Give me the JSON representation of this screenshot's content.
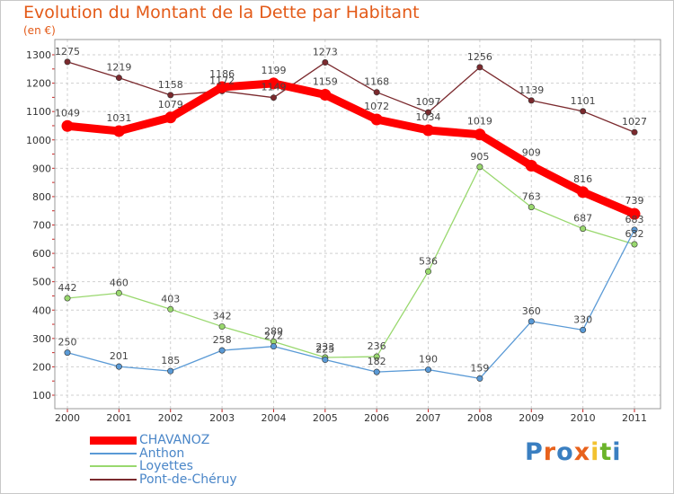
{
  "title": "Evolution du Montant de la Dette par Habitant",
  "unit": "(en €)",
  "logo": {
    "letters": [
      "P",
      "r",
      "o",
      "x",
      "i",
      "t",
      "i"
    ],
    "colors": [
      "#3a7fc1",
      "#e8621c",
      "#3a7fc1",
      "#e8621c",
      "#f2c230",
      "#6bb42a",
      "#3a7fc1"
    ]
  },
  "chart_data": {
    "type": "line",
    "title": "Evolution du Montant de la Dette par Habitant",
    "ylabel": "(en €)",
    "x": [
      "2000",
      "2001",
      "2002",
      "2003",
      "2004",
      "2005",
      "2006",
      "2007",
      "2008",
      "2009",
      "2010",
      "2011"
    ],
    "ylim": [
      100,
      1300
    ],
    "yticks": [
      100,
      200,
      300,
      400,
      500,
      600,
      700,
      800,
      900,
      1000,
      1100,
      1200,
      1300
    ],
    "series": [
      {
        "name": "Pont-de-Chéruy",
        "color": "#7b2a2e",
        "values": [
          1275,
          1219,
          1158,
          1172,
          1149,
          1273,
          1168,
          1097,
          1256,
          1139,
          1101,
          1027
        ]
      },
      {
        "name": "Loyettes",
        "color": "#99d86e",
        "values": [
          442,
          460,
          403,
          342,
          289,
          233,
          236,
          536,
          905,
          763,
          687,
          632
        ]
      },
      {
        "name": "Anthon",
        "color": "#5a9ad6",
        "values": [
          250,
          201,
          185,
          258,
          272,
          225,
          182,
          190,
          159,
          360,
          330,
          683
        ]
      },
      {
        "name": "CHAVANOZ",
        "color": "#ff0000",
        "values": [
          1049,
          1031,
          1079,
          1186,
          1199,
          1159,
          1072,
          1034,
          1019,
          909,
          816,
          739
        ]
      }
    ],
    "legend": [
      "CHAVANOZ",
      "Anthon",
      "Loyettes",
      "Pont-de-Chéruy"
    ]
  }
}
